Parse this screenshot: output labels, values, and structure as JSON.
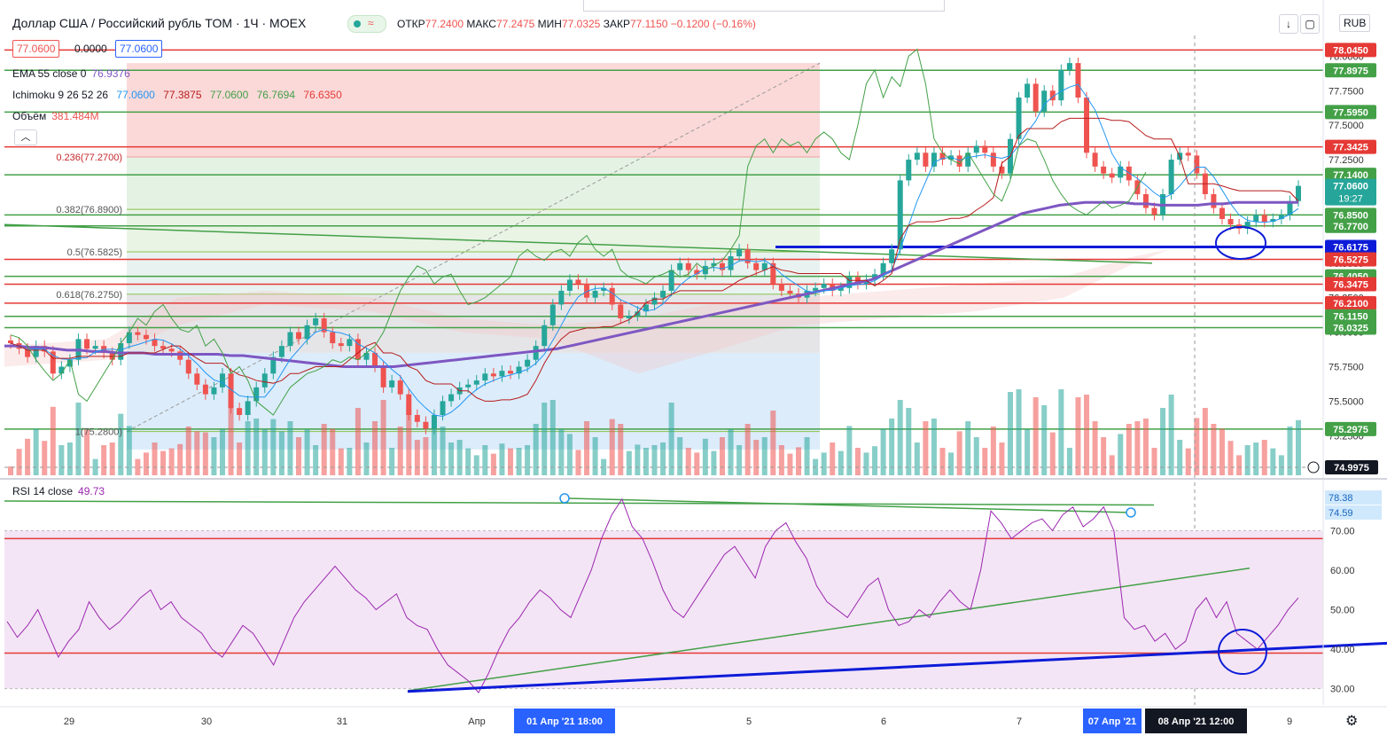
{
  "header": {
    "title": "Доллар США / Российский рубль TOM · 1Ч · MOEX",
    "ohlc_open_label": "ОТКР",
    "ohlc_open": "77.2400",
    "ohlc_high_label": "МАКС",
    "ohlc_high": "77.2475",
    "ohlc_low_label": "МИН",
    "ohlc_low": "77.0325",
    "ohlc_close_label": "ЗАКР",
    "ohlc_close": "77.1150",
    "change": "−0.1200 (−0.16%)",
    "sell": "77.0600",
    "spread": "0.0000",
    "buy": "77.0600",
    "currency": "RUB"
  },
  "indicators": {
    "ema_label": "EMA 55 close 0",
    "ema_value": "76.9376",
    "ichimoku_label": "Ichimoku 9 26 52 26",
    "ichimoku_values": [
      "77.0600",
      "77.3875",
      "77.0600",
      "76.7694",
      "76.6350"
    ],
    "volume_label": "Объём",
    "volume_value": "381.484M",
    "rsi_label": "RSI 14 close",
    "rsi_value": "49.73"
  },
  "colors": {
    "up": "#26a69a",
    "down": "#ef5350",
    "ema": "#7e57c2",
    "tenkan": "#2196f3",
    "kijun": "#b71c1c",
    "chikou": "#43a047",
    "red_line": "#e53935",
    "green_line": "#43a047",
    "blue_draw": "#0d1bd8",
    "rsi_band": "#f3e5f5",
    "rsi_line": "#9c27b0"
  },
  "chart_data": [
    {
      "type": "candlestick",
      "title": "Доллар США / Российский рубль TOM · 1Ч · MOEX",
      "ylim": [
        74.95,
        78.15
      ],
      "price_axis_ticks": [
        "78.0000",
        "77.7500",
        "77.5000",
        "77.2500",
        "77.0000",
        "76.7500",
        "76.5000",
        "76.2500",
        "76.0000",
        "75.7500",
        "75.5000",
        "75.2500"
      ],
      "x_ticks": [
        "29",
        "30",
        "31",
        "Апр",
        "5",
        "6",
        "7",
        "9"
      ],
      "x_highlight_labels": [
        "01 Апр '21   18:00",
        "07 Апр '21",
        "08 Апр '21   12:00"
      ],
      "current_price": "77.0600",
      "countdown": "19:27",
      "bottom_price": "74.9975",
      "horizontal_levels": [
        {
          "label": "78.0450",
          "value": 78.045,
          "kind": "red"
        },
        {
          "label": "77.8975",
          "value": 77.8975,
          "kind": "green"
        },
        {
          "label": "77.5950",
          "value": 77.595,
          "kind": "green"
        },
        {
          "label": "77.3425",
          "value": 77.3425,
          "kind": "red"
        },
        {
          "label": "77.1400",
          "value": 77.14,
          "kind": "green"
        },
        {
          "label": "76.8500",
          "value": 76.85,
          "kind": "green"
        },
        {
          "label": "76.7700",
          "value": 76.77,
          "kind": "green"
        },
        {
          "label": "76.6175",
          "value": 76.6175,
          "kind": "blue"
        },
        {
          "label": "76.5275",
          "value": 76.5275,
          "kind": "red"
        },
        {
          "label": "76.4050",
          "value": 76.405,
          "kind": "green"
        },
        {
          "label": "76.3475",
          "value": 76.3475,
          "kind": "red"
        },
        {
          "label": "76.2100",
          "value": 76.21,
          "kind": "red"
        },
        {
          "label": "76.1150",
          "value": 76.115,
          "kind": "green"
        },
        {
          "label": "76.0325",
          "value": 76.0325,
          "kind": "green"
        },
        {
          "label": "75.2975",
          "value": 75.2975,
          "kind": "green"
        }
      ],
      "fibonacci": [
        {
          "label": "0.236(77.2700)",
          "value": 77.27
        },
        {
          "label": "0.382(76.8900)",
          "value": 76.89
        },
        {
          "label": "0.5(76.5825)",
          "value": 76.5825
        },
        {
          "label": "0.618(76.2750)",
          "value": 76.275
        },
        {
          "label": "1(75.2800)",
          "value": 75.28
        }
      ],
      "close": [
        75.92,
        75.88,
        75.82,
        75.9,
        75.86,
        75.7,
        75.75,
        75.8,
        75.95,
        75.88,
        75.9,
        75.85,
        75.8,
        75.92,
        76.0,
        75.98,
        75.95,
        75.9,
        75.88,
        75.86,
        75.8,
        75.7,
        75.62,
        75.55,
        75.6,
        75.7,
        75.45,
        75.4,
        75.5,
        75.6,
        75.7,
        75.82,
        75.9,
        76.0,
        75.95,
        76.05,
        76.1,
        76.0,
        75.92,
        75.9,
        75.95,
        75.8,
        75.85,
        75.75,
        75.6,
        75.65,
        75.55,
        75.4,
        75.35,
        75.3,
        75.4,
        75.5,
        75.55,
        75.6,
        75.62,
        75.65,
        75.7,
        75.68,
        75.72,
        75.7,
        75.75,
        75.8,
        75.9,
        76.05,
        76.2,
        76.3,
        76.38,
        76.35,
        76.25,
        76.3,
        76.32,
        76.2,
        76.1,
        76.12,
        76.15,
        76.2,
        76.25,
        76.3,
        76.45,
        76.5,
        76.45,
        76.42,
        76.48,
        76.5,
        76.45,
        76.55,
        76.6,
        76.5,
        76.45,
        76.5,
        76.35,
        76.3,
        76.28,
        76.25,
        76.3,
        76.32,
        76.35,
        76.3,
        76.32,
        76.4,
        76.35,
        76.38,
        76.42,
        76.5,
        76.6,
        77.1,
        77.25,
        77.3,
        77.2,
        77.3,
        77.25,
        77.28,
        77.2,
        77.3,
        77.35,
        77.3,
        77.2,
        77.15,
        77.4,
        77.7,
        77.8,
        77.6,
        77.75,
        77.68,
        77.9,
        77.95,
        77.7,
        77.3,
        77.2,
        77.15,
        77.12,
        77.2,
        77.1,
        77.0,
        76.9,
        76.85,
        77.0,
        77.25,
        77.3,
        77.28,
        77.15,
        77.0,
        76.9,
        76.82,
        76.78,
        76.75,
        76.8,
        76.85,
        76.8,
        76.82,
        76.85,
        76.95,
        77.06
      ],
      "ema_55": [
        75.9,
        75.9,
        75.89,
        75.89,
        75.88,
        75.87,
        75.87,
        75.86,
        75.86,
        75.85,
        75.85,
        75.85,
        75.84,
        75.84,
        75.84,
        75.84,
        75.84,
        75.84,
        75.83,
        75.83,
        75.82,
        75.81,
        75.8,
        75.79,
        75.78,
        75.77,
        75.76,
        75.75,
        75.75,
        75.75,
        75.75,
        75.75,
        75.76,
        75.77,
        75.78,
        75.79,
        75.8,
        75.81,
        75.82,
        75.83,
        75.84,
        75.85,
        75.86,
        75.87,
        75.88,
        75.9,
        75.92,
        75.94,
        75.96,
        75.98,
        76.0,
        76.02,
        76.04,
        76.06,
        76.08,
        76.1,
        76.12,
        76.14,
        76.16,
        76.18,
        76.2,
        76.22,
        76.24,
        76.26,
        76.28,
        76.3,
        76.32,
        76.34,
        76.36,
        76.38,
        76.42,
        76.46,
        76.5,
        76.54,
        76.58,
        76.62,
        76.66,
        76.7,
        76.74,
        76.78,
        76.82,
        76.86,
        76.88,
        76.9,
        76.92,
        76.93,
        76.94,
        76.94,
        76.94,
        76.94,
        76.93,
        76.93,
        76.92,
        76.92,
        76.92,
        76.92,
        76.93,
        76.93,
        76.94,
        76.94,
        76.94,
        76.94,
        76.94,
        76.94
      ],
      "volume_note": "volume histogram shown in lower part of price pane"
    },
    {
      "type": "line",
      "title": "RSI 14 close",
      "ylim": [
        27,
        82
      ],
      "y_ticks": [
        "70.00",
        "60.00",
        "50.00",
        "40.00",
        "30.00"
      ],
      "markers": [
        "78.38",
        "74.59"
      ],
      "rsi": [
        47,
        43,
        46,
        50,
        44,
        38,
        42,
        45,
        52,
        48,
        45,
        47,
        50,
        53,
        55,
        50,
        52,
        48,
        46,
        44,
        40,
        38,
        42,
        46,
        44,
        40,
        36,
        42,
        48,
        52,
        55,
        58,
        61,
        58,
        55,
        53,
        50,
        52,
        54,
        48,
        46,
        45,
        40,
        36,
        34,
        32,
        29,
        34,
        40,
        45,
        48,
        52,
        55,
        53,
        50,
        48,
        54,
        60,
        68,
        74,
        78,
        71,
        68,
        62,
        55,
        50,
        48,
        52,
        56,
        60,
        64,
        66,
        62,
        58,
        66,
        70,
        72,
        67,
        63,
        56,
        52,
        50,
        48,
        52,
        56,
        58,
        50,
        46,
        47,
        50,
        48,
        52,
        55,
        52,
        50,
        60,
        75,
        72,
        68,
        70,
        72,
        73,
        70,
        74,
        76,
        71,
        73,
        76,
        70,
        48,
        45,
        46,
        42,
        44,
        40,
        42,
        50,
        53,
        48,
        52,
        44,
        42,
        40,
        43,
        46,
        50,
        53
      ],
      "rsi_note": "series drawn left-to-right across the pane"
    }
  ]
}
